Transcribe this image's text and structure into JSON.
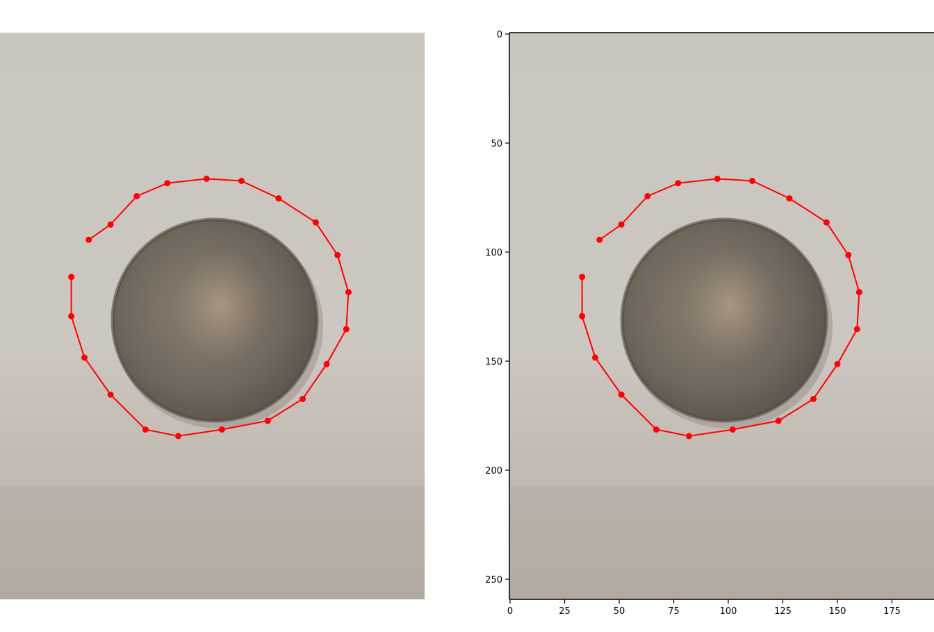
{
  "chart_data": [
    {
      "type": "scatter",
      "title": "",
      "xlabel": "",
      "ylabel": "",
      "axes_visible": false,
      "background": "coin-photo",
      "series": [
        {
          "line": true,
          "closed": false,
          "color": "#ff0000",
          "x": [
            41,
            51,
            63,
            77,
            95,
            111,
            128,
            145,
            155,
            160,
            159,
            150,
            139,
            123,
            102,
            82,
            67,
            51,
            39,
            33,
            33
          ],
          "y": [
            95,
            88,
            75,
            69,
            67,
            68,
            76,
            87,
            102,
            119,
            136,
            152,
            168,
            178,
            182,
            185,
            182,
            166,
            149,
            130,
            112
          ]
        }
      ]
    },
    {
      "type": "scatter",
      "title": "",
      "xlabel": "",
      "ylabel": "",
      "axes_visible": true,
      "background": "coin-photo",
      "xlim": [
        0,
        194
      ],
      "ylim": [
        259,
        0
      ],
      "x_ticks": [
        "0",
        "25",
        "50",
        "75",
        "100",
        "125",
        "150",
        "175"
      ],
      "y_ticks": [
        "0",
        "50",
        "100",
        "150",
        "200",
        "250"
      ],
      "series": [
        {
          "line": true,
          "closed": false,
          "color": "#ff0000",
          "x": [
            41,
            51,
            63,
            77,
            95,
            111,
            128,
            145,
            155,
            160,
            159,
            150,
            139,
            123,
            102,
            82,
            67,
            51,
            39,
            33,
            33
          ],
          "y": [
            95,
            88,
            75,
            69,
            67,
            68,
            76,
            87,
            102,
            119,
            136,
            152,
            168,
            178,
            182,
            185,
            182,
            166,
            149,
            130,
            112
          ]
        }
      ]
    }
  ]
}
